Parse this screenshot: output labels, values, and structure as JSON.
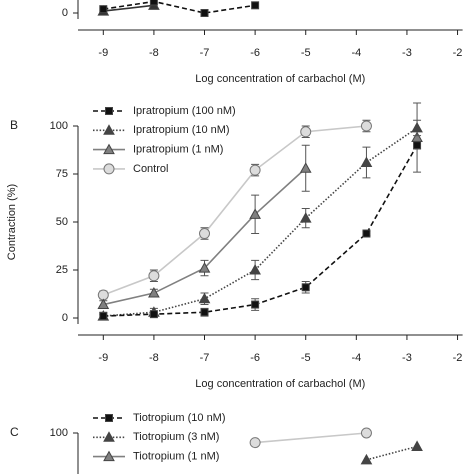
{
  "chart_data": [
    {
      "type": "line",
      "x_label": "Log concentration of carbachol (M)",
      "xlim": [
        -9.5,
        -1.9
      ],
      "xticks": [
        -9,
        -8,
        -7,
        -6,
        -5,
        -4,
        -3,
        -2
      ],
      "ylim": [
        0,
        100
      ],
      "yticks": [
        0
      ],
      "x": [
        -9,
        -8,
        -7,
        -6
      ],
      "series": [
        {
          "color": "#111111",
          "line": "dashed",
          "marker": "square",
          "values": [
            2,
            6,
            0,
            4
          ]
        },
        {
          "color": "#333333",
          "line": "solid",
          "marker": "triangle",
          "values": [
            1,
            4,
            null,
            null
          ]
        }
      ]
    },
    {
      "type": "line",
      "panel_label": "B",
      "y_label": "Contraction (%)",
      "x_label": "Log concentration of carbachol (M)",
      "xlim": [
        -9.5,
        -1.9
      ],
      "xticks": [
        -9,
        -8,
        -7,
        -6,
        -5,
        -4,
        -3,
        -2
      ],
      "ylim": [
        0,
        100
      ],
      "yticks": [
        0,
        25,
        50,
        75,
        100
      ],
      "x": [
        -9,
        -8,
        -7,
        -6,
        -5,
        -3.8,
        -2.8
      ],
      "series": [
        {
          "name": "Ipratropium (100 nM)",
          "color": "#111111",
          "line": "dashed",
          "marker": "square",
          "values": [
            1,
            2,
            3,
            7,
            16,
            44,
            90
          ],
          "errors": [
            1,
            1,
            2,
            3,
            3,
            1,
            2
          ]
        },
        {
          "name": "Ipratropium (10 nM)",
          "color": "#444444",
          "line": "dotted",
          "marker": "triangle",
          "values": [
            1,
            3,
            10,
            25,
            52,
            81,
            99
          ],
          "errors": [
            2,
            2,
            3,
            5,
            5,
            8,
            4
          ]
        },
        {
          "name": "Ipratropium (1 nM)",
          "color": "#808080",
          "line": "solid",
          "marker": "triangle",
          "values": [
            7,
            13,
            26,
            54,
            78,
            null,
            94
          ],
          "errors": [
            2,
            2,
            4,
            10,
            12,
            null,
            18
          ]
        },
        {
          "name": "Control",
          "color": "#c8c8c8",
          "line": "solid",
          "marker": "circle",
          "values": [
            12,
            22,
            44,
            77,
            97,
            100,
            null
          ],
          "errors": [
            2,
            3,
            3,
            3,
            3,
            3,
            null
          ]
        }
      ]
    },
    {
      "type": "line",
      "panel_label": "C",
      "xlim": [
        -9.5,
        -1.9
      ],
      "ylim": [
        0,
        100
      ],
      "yticks": [
        100
      ],
      "x": [
        -6,
        -3.8,
        -2.8
      ],
      "series": [
        {
          "name": "Tiotropium (10 nM)",
          "color": "#111111",
          "line": "dashed",
          "marker": "square",
          "values": [
            null,
            null,
            null
          ]
        },
        {
          "name": "Tiotropium (3 nM)",
          "color": "#444444",
          "line": "dotted",
          "marker": "triangle",
          "values": [
            null,
            86,
            93
          ]
        },
        {
          "name": "Tiotropium (1 nM)",
          "color": "#808080",
          "line": "solid",
          "marker": "triangle",
          "values": [
            null,
            null,
            null
          ]
        },
        {
          "color": "#c8c8c8",
          "line": "solid",
          "marker": "circle",
          "values": [
            95,
            100,
            null
          ]
        }
      ]
    }
  ]
}
